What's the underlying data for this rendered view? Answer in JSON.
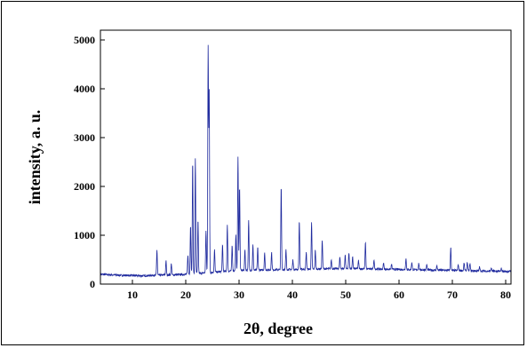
{
  "chart_data": {
    "type": "line",
    "title": "",
    "xlabel": "2θ, degree",
    "ylabel": "intensity, a. u.",
    "xlim": [
      4,
      81
    ],
    "ylim": [
      0,
      5200
    ],
    "xticks": [
      10,
      20,
      30,
      40,
      50,
      60,
      70,
      80
    ],
    "xtick_labels": [
      "10",
      "20",
      "30",
      "40",
      "50",
      "60",
      "70",
      "80"
    ],
    "yticks": [
      0,
      1000,
      2000,
      3000,
      4000,
      5000
    ],
    "ytick_labels": [
      "0",
      "1000",
      "2000",
      "3000",
      "4000",
      "5000"
    ],
    "grid": false,
    "legend": "none",
    "colors": {
      "series": "#1f2a9e",
      "axes": "#000000"
    },
    "series": [
      {
        "baseline": [
          [
            4,
            200
          ],
          [
            8,
            180
          ],
          [
            12,
            170
          ],
          [
            14,
            180
          ],
          [
            18,
            190
          ],
          [
            20,
            200
          ],
          [
            30,
            280
          ],
          [
            40,
            300
          ],
          [
            50,
            320
          ],
          [
            60,
            300
          ],
          [
            70,
            280
          ],
          [
            80,
            260
          ]
        ],
        "peaks": [
          [
            14.6,
            700
          ],
          [
            16.3,
            480
          ],
          [
            17.3,
            420
          ],
          [
            20.4,
            600
          ],
          [
            20.9,
            1200
          ],
          [
            21.3,
            2500
          ],
          [
            21.8,
            2560
          ],
          [
            22.3,
            1300
          ],
          [
            23.8,
            1100
          ],
          [
            24.2,
            4850
          ],
          [
            24.4,
            3900
          ],
          [
            25.4,
            700
          ],
          [
            26.9,
            800
          ],
          [
            27.8,
            1200
          ],
          [
            28.7,
            800
          ],
          [
            29.4,
            1000
          ],
          [
            29.8,
            2600
          ],
          [
            30.1,
            2000
          ],
          [
            31.1,
            700
          ],
          [
            31.8,
            1300
          ],
          [
            32.6,
            800
          ],
          [
            33.5,
            750
          ],
          [
            34.8,
            650
          ],
          [
            36.1,
            650
          ],
          [
            37.9,
            2000
          ],
          [
            38.8,
            700
          ],
          [
            40.1,
            500
          ],
          [
            41.3,
            1300
          ],
          [
            42.6,
            650
          ],
          [
            43.6,
            1250
          ],
          [
            44.3,
            700
          ],
          [
            45.6,
            900
          ],
          [
            47.3,
            500
          ],
          [
            48.9,
            550
          ],
          [
            49.9,
            600
          ],
          [
            50.6,
            650
          ],
          [
            51.3,
            550
          ],
          [
            52.4,
            480
          ],
          [
            53.7,
            850
          ],
          [
            55.3,
            500
          ],
          [
            57.1,
            430
          ],
          [
            58.6,
            400
          ],
          [
            61.3,
            530
          ],
          [
            62.4,
            450
          ],
          [
            63.7,
            430
          ],
          [
            65.2,
            400
          ],
          [
            67.1,
            380
          ],
          [
            69.7,
            750
          ],
          [
            71.1,
            400
          ],
          [
            72.2,
            430
          ],
          [
            72.8,
            450
          ],
          [
            73.3,
            420
          ],
          [
            75.1,
            350
          ],
          [
            77.3,
            330
          ],
          [
            79.2,
            320
          ]
        ]
      }
    ]
  }
}
